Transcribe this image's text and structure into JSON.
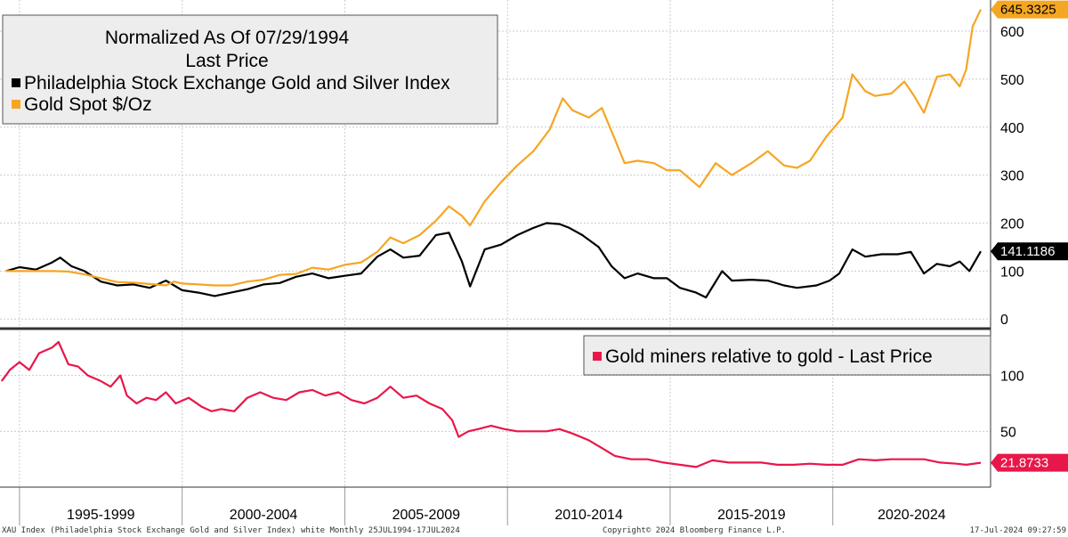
{
  "chart_data": [
    {
      "type": "line",
      "title": "Normalized As Of 07/29/1994",
      "subtitle": "Last Price",
      "yticks": [
        0,
        100,
        200,
        300,
        400,
        500,
        600
      ],
      "ylim": [
        -20,
        665
      ],
      "xlim": [
        1994.4,
        2024.85
      ],
      "grid": true,
      "legend_position": "top-left",
      "series": [
        {
          "name": "Philadelphia Stock Exchange Gold and Silver Index",
          "color": "#000000",
          "last_value_label": "141.1186",
          "x": [
            1994.58,
            1995.0,
            1995.5,
            1996.0,
            1996.25,
            1996.6,
            1997.0,
            1997.5,
            1998.0,
            1998.5,
            1999.0,
            1999.5,
            1999.75,
            2000.0,
            2000.5,
            2001.0,
            2001.5,
            2002.0,
            2002.5,
            2003.0,
            2003.5,
            2004.0,
            2004.5,
            2005.0,
            2005.5,
            2006.0,
            2006.4,
            2006.8,
            2007.3,
            2007.8,
            2008.2,
            2008.6,
            2008.85,
            2009.3,
            2009.8,
            2010.3,
            2010.8,
            2011.2,
            2011.6,
            2011.9,
            2012.3,
            2012.8,
            2013.2,
            2013.6,
            2014.0,
            2014.5,
            2014.9,
            2015.3,
            2015.8,
            2016.1,
            2016.6,
            2016.9,
            2017.5,
            2018.0,
            2018.5,
            2018.9,
            2019.5,
            2019.9,
            2020.2,
            2020.6,
            2021.0,
            2021.5,
            2022.0,
            2022.4,
            2022.8,
            2023.2,
            2023.6,
            2023.9,
            2024.2,
            2024.55
          ],
          "y": [
            100,
            108,
            103,
            118,
            128,
            110,
            100,
            78,
            70,
            72,
            65,
            80,
            70,
            60,
            55,
            48,
            55,
            62,
            72,
            75,
            88,
            95,
            85,
            90,
            95,
            130,
            145,
            128,
            132,
            175,
            180,
            120,
            68,
            145,
            155,
            175,
            190,
            200,
            198,
            190,
            175,
            150,
            110,
            85,
            95,
            85,
            85,
            65,
            55,
            45,
            100,
            80,
            82,
            80,
            70,
            65,
            70,
            80,
            95,
            145,
            130,
            135,
            135,
            140,
            95,
            115,
            110,
            120,
            100,
            141.1186
          ]
        },
        {
          "name": "Gold Spot $/Oz",
          "color": "#f5a623",
          "last_value_label": "645.3325",
          "x": [
            1994.58,
            1995.0,
            1995.5,
            1996.0,
            1996.5,
            1997.0,
            1997.5,
            1998.0,
            1998.5,
            1999.0,
            1999.5,
            1999.75,
            2000.0,
            2000.5,
            2001.0,
            2001.5,
            2002.0,
            2002.5,
            2003.0,
            2003.5,
            2004.0,
            2004.5,
            2005.0,
            2005.5,
            2006.0,
            2006.4,
            2006.8,
            2007.3,
            2007.8,
            2008.2,
            2008.6,
            2008.85,
            2009.3,
            2009.8,
            2010.3,
            2010.8,
            2011.3,
            2011.7,
            2012.0,
            2012.5,
            2012.9,
            2013.3,
            2013.6,
            2014.0,
            2014.5,
            2014.9,
            2015.3,
            2015.9,
            2016.4,
            2016.9,
            2017.5,
            2018.0,
            2018.5,
            2018.9,
            2019.3,
            2019.8,
            2020.3,
            2020.6,
            2021.0,
            2021.3,
            2021.8,
            2022.2,
            2022.5,
            2022.8,
            2023.2,
            2023.6,
            2023.9,
            2024.1,
            2024.3,
            2024.55
          ],
          "y": [
            100,
            100,
            100,
            100,
            99,
            93,
            85,
            77,
            76,
            73,
            70,
            78,
            74,
            72,
            70,
            70,
            78,
            82,
            92,
            94,
            107,
            103,
            113,
            118,
            140,
            170,
            158,
            175,
            205,
            235,
            215,
            195,
            245,
            285,
            320,
            350,
            395,
            460,
            435,
            420,
            440,
            375,
            325,
            330,
            325,
            310,
            310,
            275,
            325,
            300,
            325,
            350,
            320,
            315,
            330,
            380,
            420,
            510,
            475,
            465,
            470,
            495,
            465,
            430,
            505,
            510,
            485,
            520,
            610,
            645.3325
          ]
        }
      ]
    },
    {
      "type": "line",
      "yticks": [
        50,
        100
      ],
      "ylim": [
        0,
        142
      ],
      "xlim": [
        1994.4,
        2024.85
      ],
      "grid": true,
      "legend_position": "top-right",
      "series": [
        {
          "name": "Gold miners relative to gold - Last Price",
          "color": "#e8174a",
          "last_value_label": "21.8733",
          "x": [
            1994.45,
            1994.58,
            1994.7,
            1995.0,
            1995.3,
            1995.6,
            1996.0,
            1996.2,
            1996.5,
            1996.8,
            1997.1,
            1997.5,
            1997.8,
            1998.1,
            1998.3,
            1998.6,
            1998.9,
            1999.2,
            1999.5,
            1999.8,
            2000.2,
            2000.6,
            2000.9,
            2001.2,
            2001.6,
            2002.0,
            2002.4,
            2002.8,
            2003.2,
            2003.6,
            2004.0,
            2004.4,
            2004.8,
            2005.2,
            2005.6,
            2006.0,
            2006.4,
            2006.8,
            2007.2,
            2007.6,
            2008.0,
            2008.3,
            2008.5,
            2008.8,
            2009.1,
            2009.5,
            2009.9,
            2010.3,
            2010.8,
            2011.2,
            2011.6,
            2012.0,
            2012.5,
            2012.9,
            2013.3,
            2013.8,
            2014.3,
            2014.8,
            2015.3,
            2015.8,
            2016.3,
            2016.8,
            2017.3,
            2017.8,
            2018.3,
            2018.8,
            2019.3,
            2019.8,
            2020.3,
            2020.8,
            2021.3,
            2021.8,
            2022.3,
            2022.8,
            2023.3,
            2023.8,
            2024.1,
            2024.55
          ],
          "y": [
            95,
            100,
            105,
            112,
            105,
            120,
            125,
            130,
            110,
            108,
            100,
            95,
            90,
            100,
            82,
            75,
            80,
            78,
            85,
            75,
            80,
            72,
            68,
            70,
            68,
            80,
            85,
            80,
            78,
            85,
            87,
            82,
            85,
            78,
            75,
            80,
            90,
            80,
            82,
            75,
            70,
            60,
            45,
            50,
            52,
            55,
            52,
            50,
            50,
            50,
            52,
            48,
            42,
            35,
            28,
            25,
            25,
            22,
            20,
            18,
            24,
            22,
            22,
            22,
            20,
            20,
            21,
            20,
            20,
            25,
            24,
            25,
            25,
            25,
            22,
            21,
            20,
            21.8733
          ]
        }
      ]
    }
  ],
  "x_axis": {
    "labels": [
      "1995-1999",
      "2000-2004",
      "2005-2009",
      "2010-2014",
      "2015-2019",
      "2020-2024"
    ]
  },
  "footer": {
    "left": "XAU Index (Philadelphia Stock Exchange Gold and Silver Index) white  Monthly 25JUL1994-17JUL2024",
    "center": "Copyright© 2024 Bloomberg Finance L.P.",
    "right": "17-Jul-2024 09:27:59"
  }
}
